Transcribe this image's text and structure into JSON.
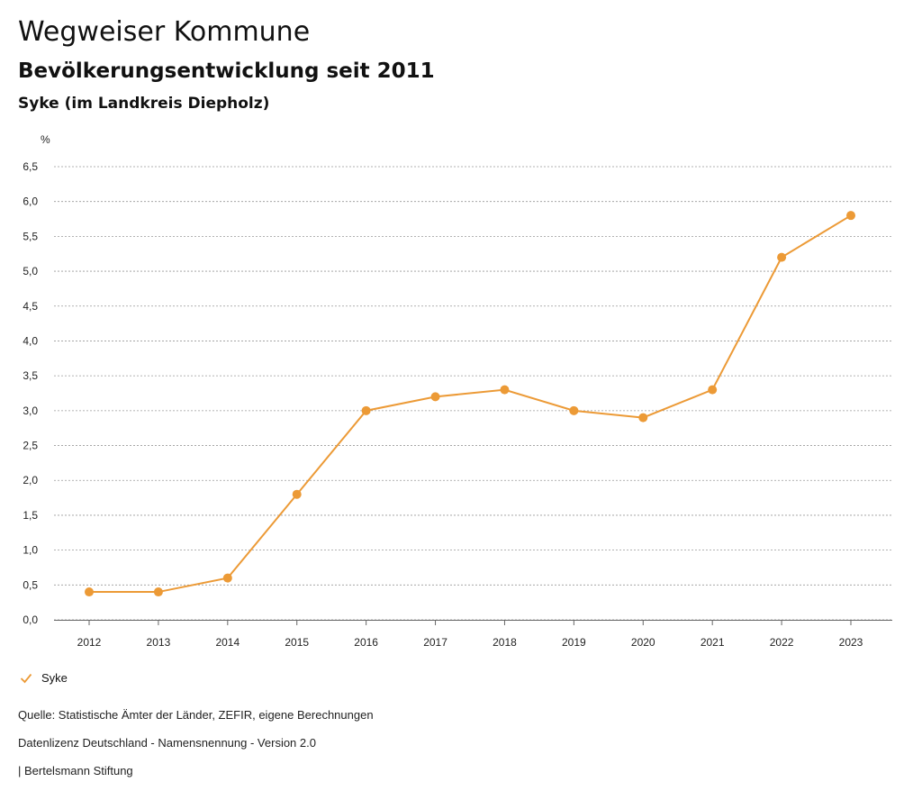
{
  "header": {
    "title": "Wegweiser Kommune",
    "subtitle": "Bevölkerungsentwicklung seit 2011",
    "region": "Syke (im Landkreis Diepholz)"
  },
  "chart_data": {
    "type": "line",
    "ylabel": "%",
    "ylim": [
      0,
      6.5
    ],
    "yticks": [
      "0,0",
      "0,5",
      "1,0",
      "1,5",
      "2,0",
      "2,5",
      "3,0",
      "3,5",
      "4,0",
      "4,5",
      "5,0",
      "5,5",
      "6,0",
      "6,5"
    ],
    "categories": [
      "2012",
      "2013",
      "2014",
      "2015",
      "2016",
      "2017",
      "2018",
      "2019",
      "2020",
      "2021",
      "2022",
      "2023"
    ],
    "series": [
      {
        "name": "Syke",
        "values": [
          0.4,
          0.4,
          0.6,
          1.8,
          3.0,
          3.2,
          3.3,
          3.0,
          2.9,
          3.3,
          5.2,
          5.8
        ]
      }
    ],
    "grid": true,
    "legend_position": "bottom-left",
    "series_color": "#ec9a36"
  },
  "legend": {
    "label": "Syke"
  },
  "footer": {
    "source": "Quelle: Statistische Ämter der Länder, ZEFIR, eigene Berechnungen",
    "license": "Datenlizenz Deutschland - Namensnennung - Version 2.0",
    "publisher": "| Bertelsmann Stiftung"
  }
}
